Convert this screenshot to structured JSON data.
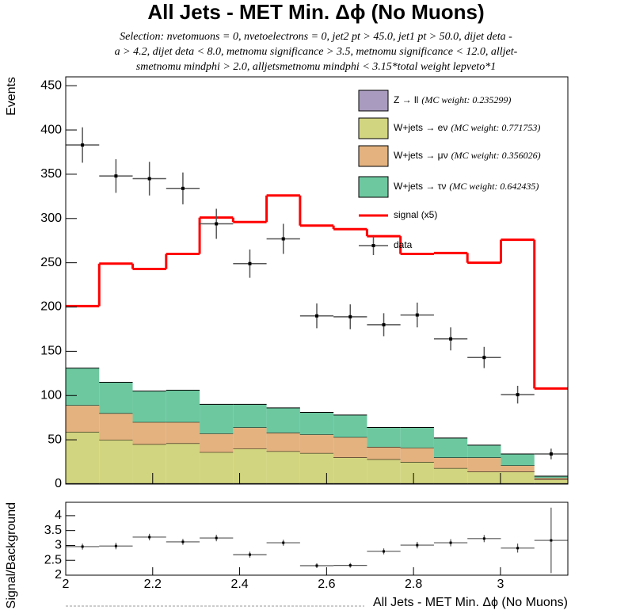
{
  "chart_data": [
    {
      "type": "histogram",
      "title": "All Jets - MET Min. Δϕ (No Muons)",
      "subtitle": [
        "Selection: nvetomuons = 0, nvetoelectrons = 0, jet2 pt > 45.0, jet1 pt > 50.0, dijet deta -",
        "a > 4.2, dijet deta < 8.0, metnomu significance > 3.5, metnomu significance < 12.0, alljet-",
        "smetnomu mindphi > 2.0, alljetsmetnomu mindphi < 3.15*total weight lepveto*1"
      ],
      "y_label": "Events",
      "bins": [
        2,
        2.077,
        2.154,
        2.231,
        2.308,
        2.385,
        2.462,
        2.539,
        2.616,
        2.693,
        2.77,
        2.847,
        2.924,
        3.001,
        3.078,
        3.155
      ],
      "xlim": [
        2,
        3.155
      ],
      "ylim": [
        0,
        460
      ],
      "yticks": [
        0,
        50,
        100,
        150,
        200,
        250,
        300,
        350,
        400,
        450
      ],
      "series": [
        {
          "name": "Z → ll",
          "note": "(MC weight: 0.235299)",
          "color": "#a99bbf",
          "values": [
            1,
            1,
            1,
            1,
            1,
            1,
            1,
            1,
            1,
            1,
            1,
            1,
            1,
            1,
            1
          ]
        },
        {
          "name": "W+jets → eν",
          "note": "(MC weight: 0.771753)",
          "color": "#d2d57f",
          "values": [
            58,
            49,
            44,
            45,
            35,
            39,
            36,
            34,
            29,
            27,
            24,
            17,
            13,
            13,
            4
          ]
        },
        {
          "name": "W+jets → μν",
          "note": "(MC weight: 0.356026)",
          "color": "#e3b27f",
          "values": [
            30,
            30,
            25,
            24,
            21,
            24,
            21,
            21,
            23,
            14,
            16,
            12,
            16,
            7,
            2
          ]
        },
        {
          "name": "W+jets → τν",
          "note": "(MC weight: 0.642435)",
          "color": "#6dc8a0",
          "values": [
            42,
            35,
            35,
            36,
            33,
            26,
            28,
            25,
            25,
            22,
            23,
            22,
            14,
            13,
            2
          ]
        }
      ],
      "signal": {
        "name": "signal (x5)",
        "color": "#ff0000",
        "values": [
          201,
          249,
          243,
          260,
          301,
          296,
          326,
          292,
          288,
          280,
          260,
          261,
          250,
          276,
          108
        ]
      },
      "data": {
        "name": "data",
        "values": [
          383,
          348,
          345,
          334,
          294,
          249,
          277,
          190,
          189,
          180,
          191,
          164,
          143,
          101,
          34
        ],
        "errors": [
          20,
          19,
          19,
          18,
          17,
          16,
          17,
          14,
          14,
          13,
          14,
          13,
          12,
          10,
          6
        ]
      }
    },
    {
      "type": "ratio",
      "y_label": "Signal/Background",
      "x_label": "All Jets - MET Min. Δϕ (No Muons)",
      "xlim": [
        2,
        3.155
      ],
      "xticks": [
        2,
        2.2,
        2.4,
        2.6,
        2.8,
        3
      ],
      "ylim": [
        2,
        4.45
      ],
      "yticks": [
        2,
        2.5,
        3,
        3.5,
        4
      ],
      "values": [
        2.96,
        2.98,
        3.28,
        3.12,
        3.25,
        2.69,
        3.09,
        2.32,
        2.33,
        2.8,
        3.01,
        3.09,
        3.23,
        2.91,
        3.17
      ],
      "errors": [
        0.1,
        0.11,
        0.11,
        0.1,
        0.11,
        0.1,
        0.1,
        0.08,
        0.08,
        0.1,
        0.11,
        0.12,
        0.12,
        0.15,
        1.1
      ]
    }
  ]
}
